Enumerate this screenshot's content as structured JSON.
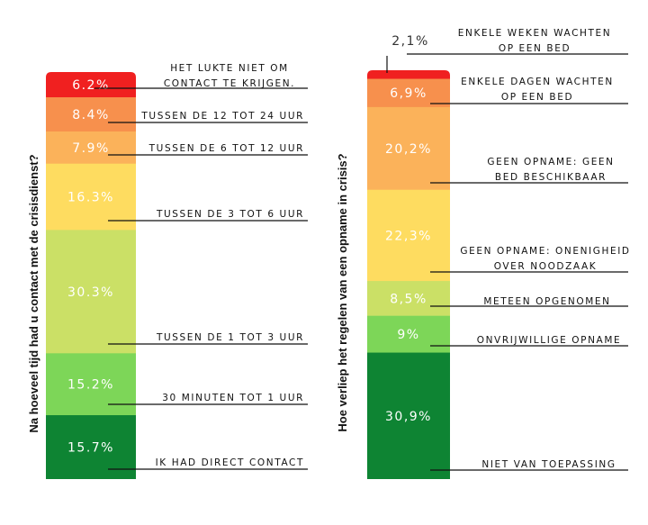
{
  "chart_data": [
    {
      "type": "bar",
      "stacked": true,
      "ylabel": "Na hoeveel tijd had u contact met de crisisdienst?",
      "series": [
        {
          "name": "Het lukte niet om contact te krijgen.",
          "label": "6.2%",
          "value": 6.2,
          "color": "#f02020",
          "label_lines": [
            "HET LUKTE NIET OM",
            "CONTACT TE KRIJGEN."
          ]
        },
        {
          "name": "Tussen de 12 tot 24 uur",
          "label": "8.4%",
          "value": 8.4,
          "color": "#f7904d",
          "label_lines": [
            "TUSSEN DE 12 TOT 24 UUR"
          ]
        },
        {
          "name": "Tussen de 6 tot 12 uur",
          "label": "7.9%",
          "value": 7.9,
          "color": "#fbb25a",
          "label_lines": [
            "TUSSEN DE 6 TOT 12 UUR"
          ]
        },
        {
          "name": "Tussen de 3 tot 6 uur",
          "label": "16.3%",
          "value": 16.3,
          "color": "#fedc60",
          "label_lines": [
            "TUSSEN DE 3 TOT 6 UUR"
          ]
        },
        {
          "name": "Tussen de 1 tot 3 uur",
          "label": "30.3%",
          "value": 30.3,
          "color": "#cbe066",
          "label_lines": [
            "TUSSEN DE 1 TOT 3 UUR"
          ]
        },
        {
          "name": "30 minuten tot 1 uur",
          "label": "15.2%",
          "value": 15.2,
          "color": "#7dd658",
          "label_lines": [
            "30 MINUTEN TOT 1 UUR"
          ]
        },
        {
          "name": "Ik had direct contact",
          "label": "15.7%",
          "value": 15.7,
          "color": "#0e8433",
          "label_lines": [
            "IK HAD DIRECT CONTACT"
          ]
        }
      ]
    },
    {
      "type": "bar",
      "stacked": true,
      "ylabel": "Hoe verliep het regelen van een opname in crisis?",
      "series": [
        {
          "name": "Enkele weken wachten op een bed",
          "label": "2,1%",
          "value": 2.1,
          "color": "#f02020",
          "label_lines": [
            "ENKELE WEKEN WACHTEN",
            "OP EEN BED"
          ]
        },
        {
          "name": "Enkele dagen wachten op een bed",
          "label": "6,9%",
          "value": 6.9,
          "color": "#f7904d",
          "label_lines": [
            "ENKELE DAGEN WACHTEN",
            "OP EEN BED"
          ]
        },
        {
          "name": "Geen opname: geen bed beschikbaar",
          "label": "20,2%",
          "value": 20.2,
          "color": "#fbb25a",
          "label_lines": [
            "GEEN OPNAME: GEEN",
            "BED BESCHIKBAAR"
          ]
        },
        {
          "name": "Geen opname: onenigheid over noodzaak",
          "label": "22,3%",
          "value": 22.3,
          "color": "#fedc60",
          "label_lines": [
            "GEEN OPNAME: ONENIGHEID",
            "OVER NOODZAAK"
          ]
        },
        {
          "name": "Meteen opgenomen",
          "label": "8,5%",
          "value": 8.5,
          "color": "#cbe066",
          "label_lines": [
            "METEEN OPGENOMEN"
          ]
        },
        {
          "name": "Onvrijwillige opname",
          "label": "9%",
          "value": 9.0,
          "color": "#7dd658",
          "label_lines": [
            "ONVRIJWILLIGE OPNAME"
          ]
        },
        {
          "name": "Niet van toepassing",
          "label": "30,9%",
          "value": 30.9,
          "color": "#0e8433",
          "label_lines": [
            "NIET VAN TOEPASSING"
          ]
        }
      ]
    }
  ]
}
